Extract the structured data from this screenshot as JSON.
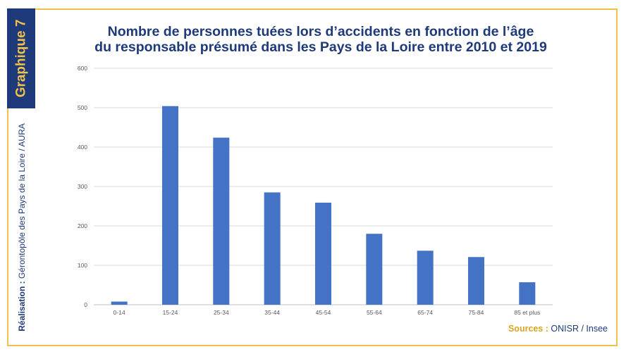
{
  "side_tab": {
    "label": "Graphique 7"
  },
  "credit": {
    "prefix": "Réalisation :",
    "text": " Gérontopôle des Pays de la Loire / AURA"
  },
  "chart_data": {
    "type": "bar",
    "title": "Nombre de personnes tuées lors d’accidents en fonction de l’âge du responsable présumé dans les Pays de la Loire entre 2010 et 2019",
    "title_lines": [
      "Nombre de personnes tuées lors d’accidents en fonction de l’âge",
      "du responsable présumé dans les Pays de la Loire entre 2010 et 2019"
    ],
    "categories": [
      "0-14",
      "15-24",
      "25-34",
      "35-44",
      "45-54",
      "55-64",
      "65-74",
      "75-84",
      "85 et plus"
    ],
    "values": [
      8,
      504,
      424,
      285,
      259,
      180,
      137,
      121,
      57
    ],
    "ylim": [
      0,
      600
    ],
    "yticks": [
      0,
      100,
      200,
      300,
      400,
      500,
      600
    ],
    "xlabel": "",
    "ylabel": "",
    "grid": true,
    "bar_color": "#4472c4"
  },
  "sources": {
    "label": "Sources :",
    "text": " ONISR / Insee"
  }
}
